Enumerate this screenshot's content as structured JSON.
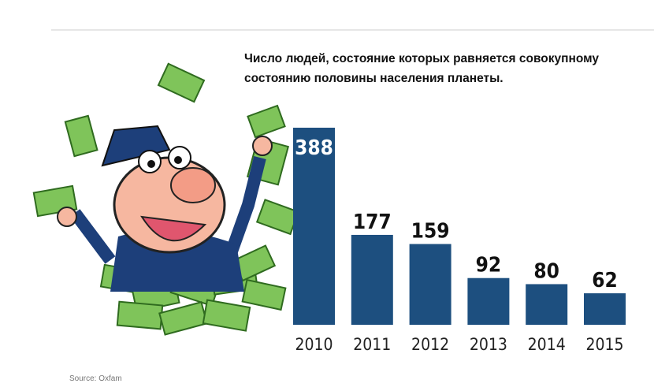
{
  "chart_data": {
    "type": "bar",
    "title": "Число людей, состояние которых равняется совокупному состоянию половины населения планеты.",
    "categories": [
      "2010",
      "2011",
      "2012",
      "2013",
      "2014",
      "2015"
    ],
    "values": [
      388,
      177,
      159,
      92,
      80,
      62
    ],
    "color": "#1d4f7f",
    "source": "Source: Oxfam"
  }
}
